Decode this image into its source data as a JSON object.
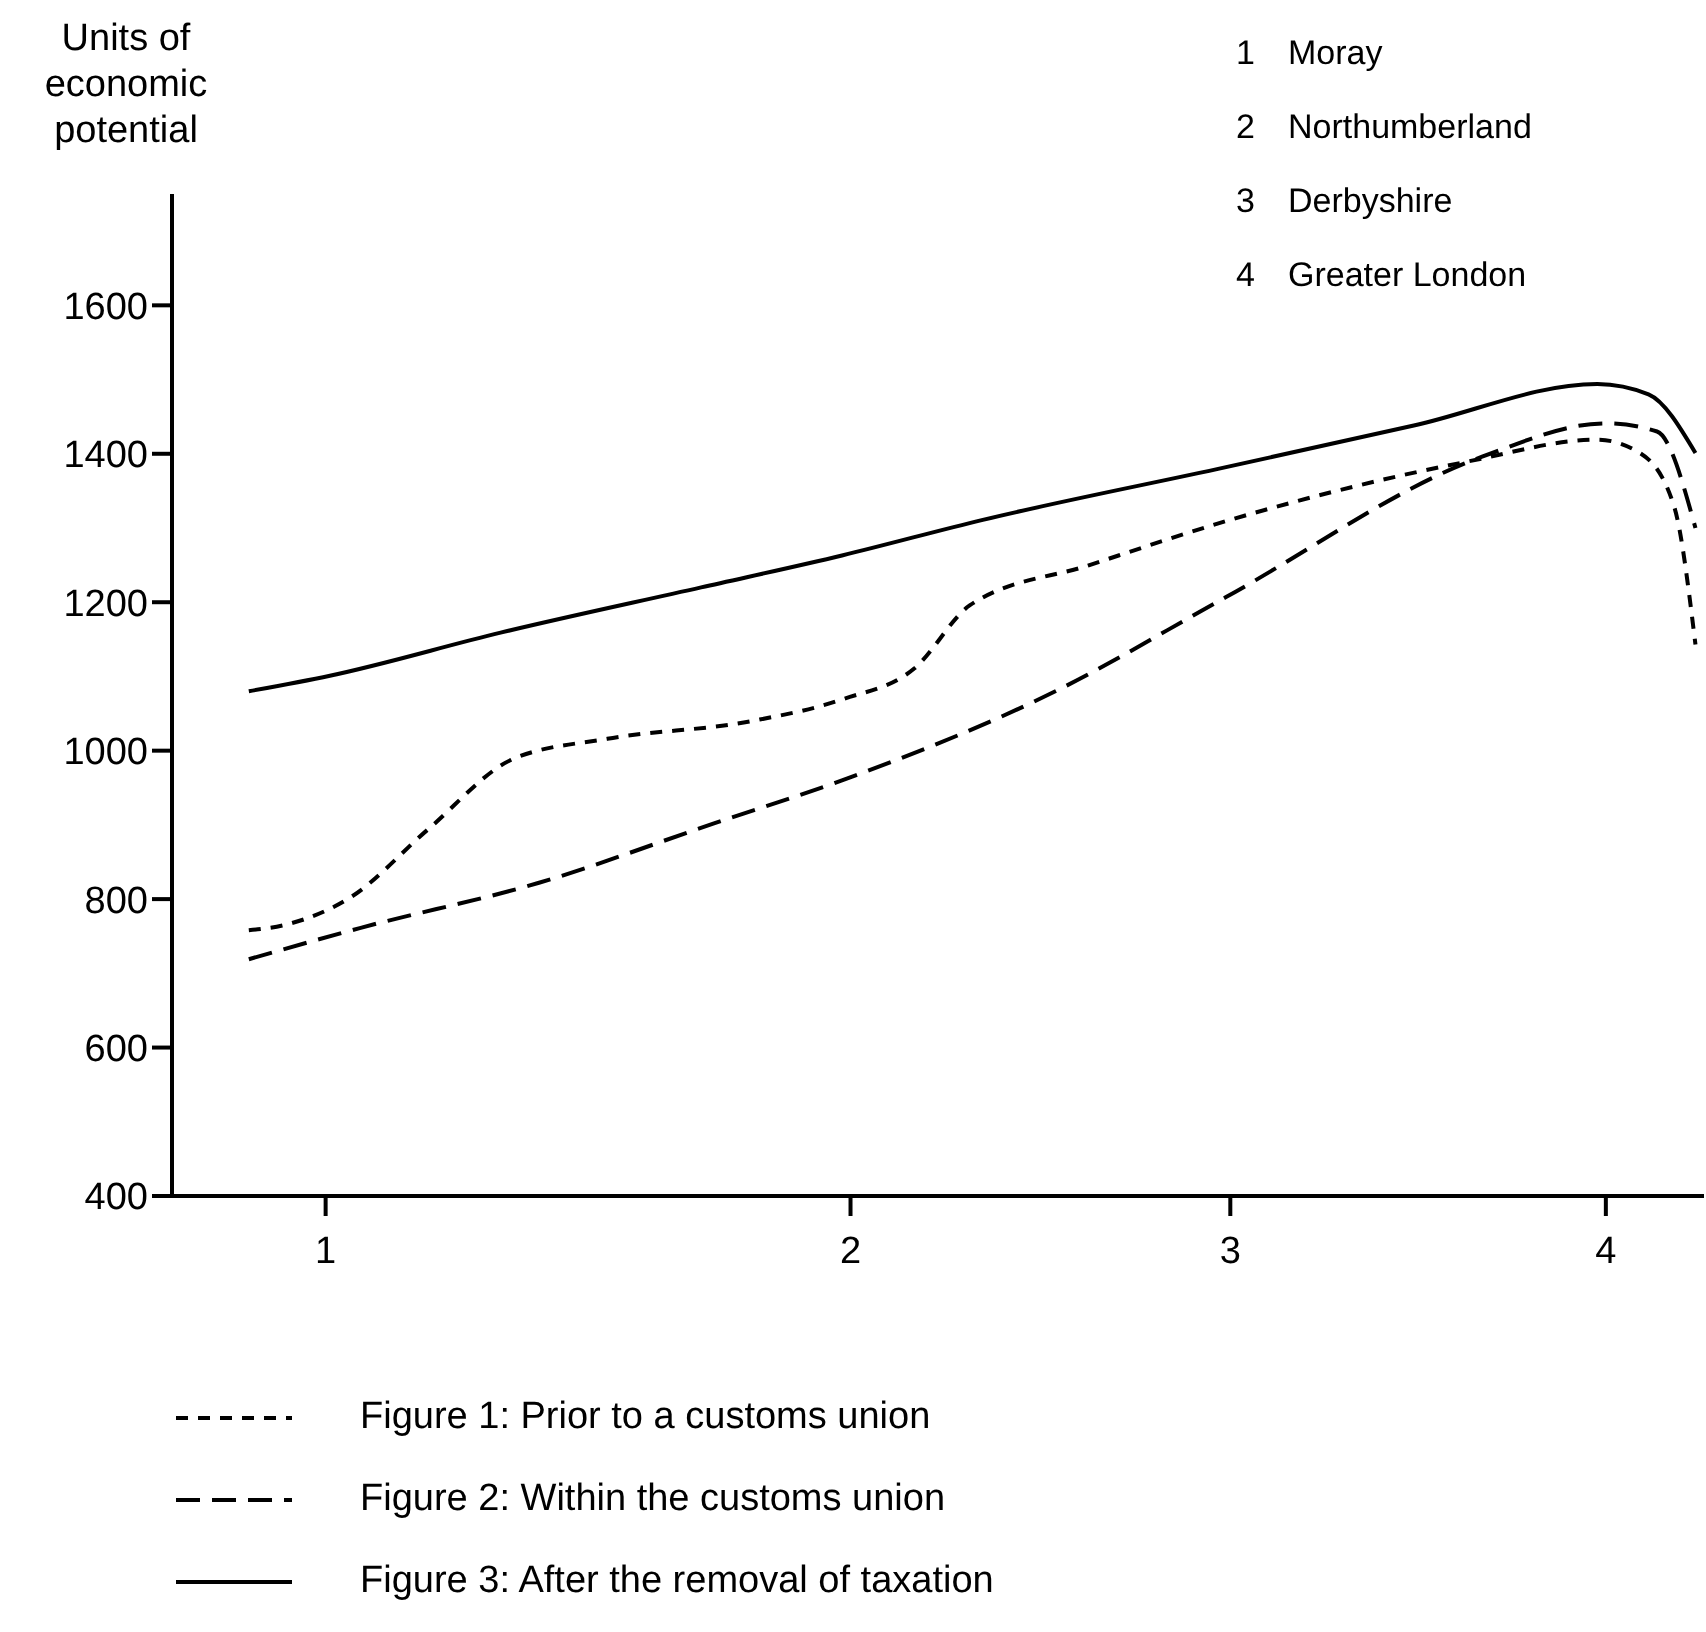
{
  "chart_data": {
    "type": "line",
    "ylabel": "Units of economic potential",
    "annotations": [
      "1 Moray",
      "2 Northumberland",
      "3 Derbyshire",
      "4 Greater London"
    ],
    "xlim": [
      0.64,
      4.23
    ],
    "xticks": [
      1,
      {
        "value": 2.23,
        "label": "2"
      },
      {
        "value": 3.12,
        "label": "3"
      },
      4
    ],
    "ylim": [
      400,
      1750
    ],
    "yticks": [
      400,
      600,
      800,
      1000,
      1200,
      1400,
      1600
    ],
    "grid": false,
    "legend": "bottom",
    "marker": "none",
    "series": [
      {
        "name": "Figure 1: Prior to a customs union",
        "color": "#000000",
        "line_style": "dotted",
        "x": [
          0.82,
          0.91,
          1.06,
          1.24,
          1.44,
          1.66,
          2.0,
          2.21,
          2.38,
          2.51,
          2.79,
          3.12,
          3.68,
          3.98,
          4.08,
          4.16,
          4.21
        ],
        "values": [
          758,
          766,
          803,
          894,
          989,
          1016,
          1040,
          1069,
          1111,
          1196,
          1250,
          1311,
          1390,
          1419,
          1401,
          1329,
          1143
        ]
      },
      {
        "name": "Figure 2: Within the customs union",
        "color": "#000000",
        "line_style": "dashed",
        "x": [
          0.82,
          1.08,
          1.5,
          1.91,
          2.21,
          2.71,
          3.11,
          3.71,
          4.0,
          4.12,
          4.21
        ],
        "values": [
          719,
          761,
          822,
          902,
          960,
          1080,
          1207,
          1396,
          1441,
          1430,
          1300
        ]
      },
      {
        "name": "Figure 3: After the removal of taxation",
        "color": "#000000",
        "line_style": "solid",
        "x": [
          0.82,
          1.01,
          1.41,
          1.88,
          2.21,
          2.54,
          3.11,
          3.55,
          3.98,
          4.1,
          4.21
        ],
        "values": [
          1080,
          1101,
          1159,
          1220,
          1263,
          1311,
          1382,
          1438,
          1494,
          1480,
          1401
        ]
      }
    ]
  }
}
